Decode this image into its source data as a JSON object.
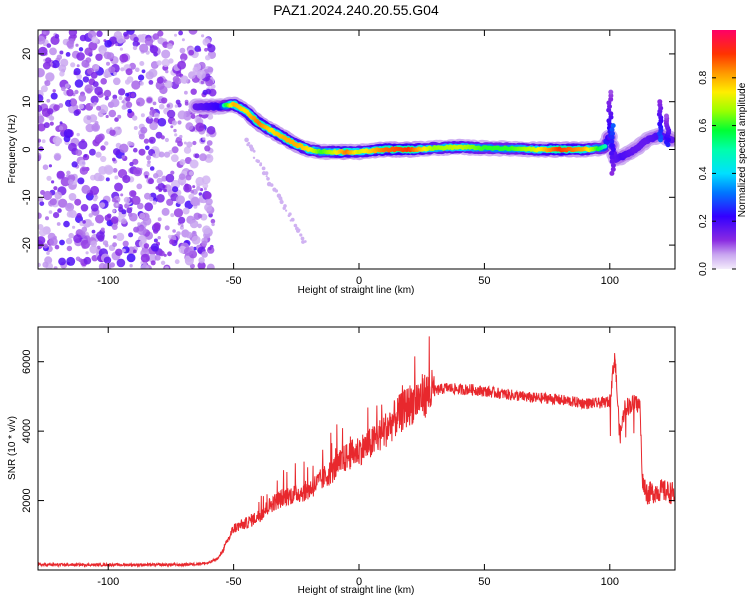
{
  "title": "PAZ1.2024.240.20.55.G04",
  "chart_data": [
    {
      "type": "heatmap",
      "xlabel": "Height of straight line (km)",
      "ylabel": "Frequency (Hz)",
      "xlim": [
        -128,
        126
      ],
      "ylim": [
        -25,
        25
      ],
      "xticks": [
        -100,
        -50,
        0,
        50,
        100
      ],
      "yticks": [
        20,
        10,
        0,
        -10,
        -20
      ],
      "xtick_labels": [
        "-100",
        "-50",
        "0",
        "50",
        "100"
      ],
      "ytick_labels": [
        "20",
        "10",
        "0",
        "-10",
        "-20"
      ],
      "colorbar": {
        "label": "Normalized spectral amplitude",
        "range": [
          0,
          1
        ],
        "ticks": [
          0.0,
          0.2,
          0.4,
          0.6,
          0.8
        ],
        "tick_labels": [
          "0.0",
          "0.2",
          "0.4",
          "0.6",
          "0.8"
        ]
      },
      "noise_region_x": [
        -128,
        -58
      ],
      "ridge": {
        "x": [
          -65,
          -60,
          -55,
          -50,
          -45,
          -40,
          -35,
          -30,
          -25,
          -20,
          -15,
          -10,
          -5,
          0,
          10,
          20,
          30,
          40,
          50,
          60,
          70,
          80,
          90,
          95,
          98,
          100,
          102,
          105,
          110,
          115,
          120,
          125
        ],
        "freq": [
          9,
          9,
          9,
          9.5,
          8,
          5.5,
          4,
          2.5,
          1,
          0,
          -0.5,
          -0.5,
          -0.5,
          -0.5,
          0,
          0,
          0.3,
          0.5,
          0.3,
          0.2,
          0,
          0,
          0,
          0.2,
          0.5,
          3,
          -2,
          -1.5,
          0,
          2,
          3,
          2
        ],
        "amplitude": [
          0.3,
          0.35,
          0.4,
          0.8,
          0.75,
          0.85,
          0.75,
          0.8,
          0.8,
          0.75,
          0.6,
          0.7,
          0.85,
          0.7,
          0.85,
          0.9,
          0.65,
          0.7,
          0.6,
          0.6,
          0.7,
          0.9,
          0.8,
          0.6,
          0.5,
          0.35,
          0.3,
          0.35,
          0.3,
          0.3,
          0.35,
          0.3
        ]
      }
    },
    {
      "type": "line",
      "xlabel": "Height of straight line (km)",
      "ylabel": "SNR (10 * v/v)",
      "xlim": [
        -128,
        126
      ],
      "ylim": [
        0,
        7000
      ],
      "xticks": [
        -100,
        -50,
        0,
        50,
        100
      ],
      "yticks": [
        2000,
        4000,
        6000
      ],
      "xtick_labels": [
        "-100",
        "-50",
        "0",
        "50",
        "100"
      ],
      "ytick_labels": [
        "2000",
        "4000",
        "6000"
      ],
      "color": "#e8282d",
      "series": [
        {
          "x": [
            -128,
            -110,
            -90,
            -70,
            -60,
            -56,
            -54,
            -52,
            -50,
            -45,
            -40,
            -35,
            -30,
            -25,
            -20,
            -15,
            -10,
            -5,
            0,
            5,
            10,
            15,
            20,
            25,
            30,
            35,
            40,
            45,
            50,
            55,
            60,
            65,
            70,
            75,
            80,
            85,
            90,
            95,
            100,
            102,
            104,
            106,
            110,
            112,
            113,
            115,
            120,
            126
          ],
          "y": [
            150,
            150,
            150,
            150,
            200,
            350,
            600,
            900,
            1200,
            1350,
            1550,
            1900,
            2100,
            2200,
            2300,
            2600,
            2900,
            3250,
            3450,
            3650,
            4000,
            4400,
            4750,
            5000,
            5150,
            5250,
            5200,
            5200,
            5150,
            5100,
            5050,
            5000,
            4950,
            4950,
            4900,
            4850,
            4800,
            4800,
            4850,
            6200,
            3800,
            4700,
            4800,
            4750,
            2600,
            2200,
            2300,
            2200
          ]
        }
      ]
    }
  ]
}
